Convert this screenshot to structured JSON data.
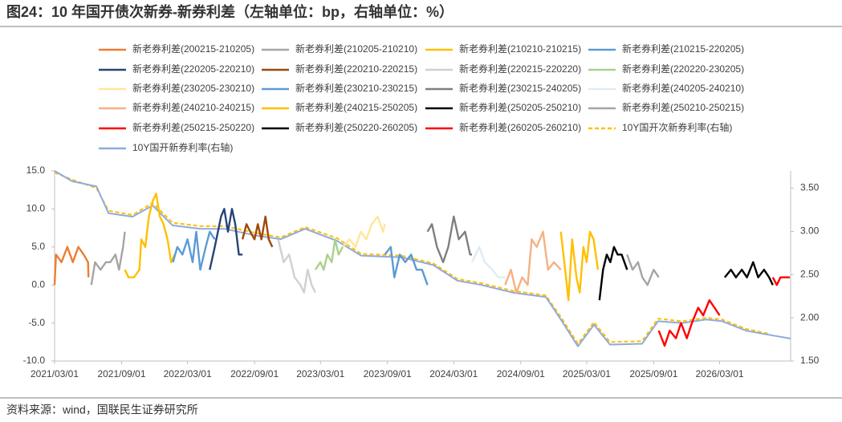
{
  "chart_data": {
    "type": "line",
    "title": "图24：10 年国开债次新券-新券利差（左轴单位：bp，右轴单位：%）",
    "source": "资料来源：wind，国联民生证券研究所",
    "xlim": [
      "2021/03/01",
      "2026/09/12"
    ],
    "xticks": [
      "2021/03/01",
      "2021/09/01",
      "2022/03/01",
      "2022/09/01",
      "2023/03/01",
      "2023/09/01",
      "2024/03/01",
      "2024/09/01",
      "2025/03/01",
      "2025/09/01",
      "2026/03/01"
    ],
    "ylim": [
      -10,
      15
    ],
    "yticks": [
      {
        "value": 15,
        "label": "15.0"
      },
      {
        "value": 10,
        "label": "10.0"
      },
      {
        "value": 5,
        "label": "5.0"
      },
      {
        "value": 0,
        "label": "0.0"
      },
      {
        "value": -5,
        "label": "-5.0"
      },
      {
        "value": -10,
        "label": "-10.0"
      }
    ],
    "y2lim": [
      1.5,
      3.7
    ],
    "y2ticks": [
      {
        "value": 3.5,
        "label": "3.50"
      },
      {
        "value": 3,
        "label": "3.00"
      },
      {
        "value": 2.5,
        "label": "2.50"
      },
      {
        "value": 2,
        "label": "2.00"
      },
      {
        "value": 1.5,
        "label": "1.50"
      }
    ],
    "grid": false,
    "legend": "top",
    "series": [
      {
        "name": "新老券利差(200215-210205)",
        "color": "#ED7D31",
        "x": [
          "2021/03/01",
          "2021/03/05",
          "2021/03/20",
          "2021/04/05",
          "2021/04/20",
          "2021/05/05",
          "2021/05/20",
          "2021/06/01",
          "2021/06/02"
        ],
        "values": [
          0,
          4,
          3,
          5,
          3,
          5,
          4,
          3,
          1
        ]
      },
      {
        "name": "新老券利差(210205-210210)",
        "color": "#A5A5A5",
        "x": [
          "2021/06/10",
          "2021/06/20",
          "2021/07/05",
          "2021/07/20",
          "2021/08/01",
          "2021/08/15",
          "2021/08/25",
          "2021/09/05",
          "2021/09/10"
        ],
        "values": [
          0,
          3,
          2,
          3,
          3,
          4,
          2,
          5,
          7
        ]
      },
      {
        "name": "新老券利差(210210-210215)",
        "color": "#FFC000",
        "x": [
          "2021/09/10",
          "2021/09/20",
          "2021/10/05",
          "2021/10/20",
          "2021/10/25",
          "2021/11/05",
          "2021/11/15",
          "2021/11/25",
          "2021/12/05",
          "2021/12/15",
          "2021/12/25",
          "2022/01/05",
          "2022/01/15",
          "2022/01/25"
        ],
        "values": [
          2,
          1,
          1,
          2,
          6,
          5,
          9,
          11,
          12,
          9,
          8,
          6,
          3,
          4
        ]
      },
      {
        "name": "新老券利差(210215-220205)",
        "color": "#5B9BD5",
        "x": [
          "2022/01/20",
          "2022/02/01",
          "2022/02/15",
          "2022/03/01",
          "2022/03/15",
          "2022/03/25",
          "2022/04/05",
          "2022/04/20",
          "2022/05/01",
          "2022/05/15"
        ],
        "values": [
          3,
          5,
          4,
          6,
          3,
          7,
          2,
          5,
          7,
          6
        ]
      },
      {
        "name": "新老券利差(220205-220210)",
        "color": "#264478",
        "x": [
          "2022/05/01",
          "2022/05/15",
          "2022/06/01",
          "2022/06/10",
          "2022/06/20",
          "2022/07/01",
          "2022/07/10",
          "2022/07/20",
          "2022/07/30"
        ],
        "values": [
          2,
          5,
          9,
          10,
          7,
          10,
          8,
          4,
          4
        ]
      },
      {
        "name": "新老券利差(220210-220215)",
        "color": "#9E480E",
        "x": [
          "2022/07/30",
          "2022/08/10",
          "2022/08/20",
          "2022/09/01",
          "2022/09/10",
          "2022/09/20",
          "2022/10/01",
          "2022/10/10",
          "2022/10/20"
        ],
        "values": [
          6,
          8,
          7,
          6,
          8,
          6,
          9,
          6,
          5
        ]
      },
      {
        "name": "新老券利差(220215-220220)",
        "color": "#D0D0D0",
        "x": [
          "2022/11/05",
          "2022/11/20",
          "2022/12/05",
          "2022/12/20",
          "2023/01/05",
          "2023/01/15",
          "2023/01/25",
          "2023/02/05",
          "2023/02/15"
        ],
        "values": [
          6,
          3,
          4,
          1,
          0,
          -1,
          2,
          0,
          -1
        ]
      },
      {
        "name": "新老券利差(220220-230205)",
        "color": "#A9D18E",
        "x": [
          "2023/02/15",
          "2023/03/01",
          "2023/03/10",
          "2023/03/20",
          "2023/04/01",
          "2023/04/10",
          "2023/04/20",
          "2023/05/01"
        ],
        "values": [
          2,
          3,
          2,
          4,
          3,
          6,
          4,
          5
        ]
      },
      {
        "name": "新老券利差(230205-230210)",
        "color": "#FFE699",
        "x": [
          "2023/05/01",
          "2023/05/20",
          "2023/06/05",
          "2023/06/20",
          "2023/07/05",
          "2023/07/20",
          "2023/08/05",
          "2023/08/20",
          "2023/08/25"
        ],
        "values": [
          5,
          6,
          5,
          7,
          6,
          8,
          9,
          7,
          8
        ]
      },
      {
        "name": "新老券利差(230210-230215)",
        "color": "#5B9BD5",
        "x": [
          "2023/08/25",
          "2023/09/10",
          "2023/09/20",
          "2023/10/05",
          "2023/10/20",
          "2023/11/05",
          "2023/11/20",
          "2023/12/05",
          "2023/12/20"
        ],
        "values": [
          4,
          5,
          1,
          4,
          3,
          4,
          2,
          2,
          0
        ]
      },
      {
        "name": "新老券利差(230215-240205)",
        "color": "#7F7F7F",
        "x": [
          "2023/12/20",
          "2024/01/01",
          "2024/01/15",
          "2024/02/01",
          "2024/02/15",
          "2024/03/01",
          "2024/03/15",
          "2024/04/01",
          "2024/04/15",
          "2024/04/20"
        ],
        "values": [
          7,
          8,
          5,
          3,
          5,
          9,
          6,
          7,
          4,
          4
        ]
      },
      {
        "name": "新老券利差(240205-240210)",
        "color": "#DEEBF7",
        "x": [
          "2024/04/20",
          "2024/05/10",
          "2024/05/25",
          "2024/06/15",
          "2024/07/01",
          "2024/07/20"
        ],
        "values": [
          3,
          5,
          3,
          2,
          1,
          1
        ]
      },
      {
        "name": "新老券利差(240210-240215)",
        "color": "#F4B183",
        "x": [
          "2024/07/20",
          "2024/08/05",
          "2024/08/20",
          "2024/09/05",
          "2024/09/20",
          "2024/10/01",
          "2024/10/15",
          "2024/11/01",
          "2024/11/15",
          "2024/12/01",
          "2024/12/20"
        ],
        "values": [
          0,
          2,
          -1,
          1,
          0,
          6,
          5,
          7,
          2,
          3,
          2
        ]
      },
      {
        "name": "新老券利差(240215-250205)",
        "color": "#FFC000",
        "x": [
          "2024/12/20",
          "2025/01/01",
          "2025/01/10",
          "2025/01/20",
          "2025/02/01",
          "2025/02/10",
          "2025/02/20",
          "2025/03/01",
          "2025/03/10",
          "2025/03/20",
          "2025/04/01"
        ],
        "values": [
          7,
          2,
          -2,
          6,
          1,
          -1,
          5,
          3,
          7,
          6,
          2
        ]
      },
      {
        "name": "新老券利差(250205-250210)",
        "color": "#000000",
        "x": [
          "2025/04/05",
          "2025/04/15",
          "2025/04/25",
          "2025/05/05",
          "2025/05/15",
          "2025/05/25",
          "2025/06/05",
          "2025/06/20"
        ],
        "values": [
          -2,
          2,
          4,
          3,
          5,
          4,
          4,
          2
        ]
      },
      {
        "name": "新老券利差(250210-250215)",
        "color": "#A5A5A5",
        "x": [
          "2025/06/20",
          "2025/07/05",
          "2025/07/20",
          "2025/08/01",
          "2025/08/15",
          "2025/09/01",
          "2025/09/15"
        ],
        "values": [
          4,
          2,
          3,
          1,
          0,
          2,
          1
        ]
      },
      {
        "name": "新老券利差(250215-250220)",
        "color": "#FF0000",
        "x": [
          "2025/09/15",
          "2025/10/01",
          "2025/10/15",
          "2025/11/01",
          "2025/11/15",
          "2025/12/01",
          "2025/12/15",
          "2026/01/01",
          "2026/01/15",
          "2026/02/01",
          "2026/02/15",
          "2026/03/01"
        ],
        "values": [
          -6,
          -8,
          -6,
          -7,
          -5,
          -7,
          -5,
          -3,
          -4,
          -2,
          -3,
          -4
        ]
      },
      {
        "name": "新老券利差(250220-260205)",
        "color": "#000000",
        "x": [
          "2026/03/15",
          "2026/04/01",
          "2026/04/15",
          "2026/05/01",
          "2026/05/15",
          "2026/06/01",
          "2026/06/15",
          "2026/07/01",
          "2026/07/15",
          "2026/07/25"
        ],
        "values": [
          1,
          2,
          1,
          2,
          1,
          3,
          1,
          2,
          1,
          0
        ]
      },
      {
        "name": "新老券利差(260205-260210)",
        "color": "#FF0000",
        "x": [
          "2026/07/25",
          "2026/08/05",
          "2026/08/15",
          "2026/08/25",
          "2026/09/10"
        ],
        "values": [
          1,
          0,
          1,
          1,
          1
        ]
      },
      {
        "name": "10Y国开次新券利率(右轴)",
        "color": "#FFC000",
        "axis": "y2",
        "line_style": "dashed",
        "x": [
          "2021/03/01",
          "2021/04/18",
          "2021/06/24",
          "2021/07/27",
          "2021/10/01",
          "2021/11/25",
          "2022/01/19",
          "2022/04/06",
          "2022/06/11",
          "2022/09/07",
          "2022/11/12",
          "2023/01/18",
          "2023/04/16",
          "2023/06/21",
          "2023/10/09",
          "2024/01/05",
          "2024/03/11",
          "2024/05/16",
          "2024/08/12",
          "2024/11/09",
          "2024/12/23",
          "2025/02/05",
          "2025/03/21",
          "2025/05/04",
          "2025/07/31",
          "2025/09/13",
          "2025/11/18",
          "2026/01/23",
          "2026/03/08",
          "2026/05/14",
          "2026/07/19"
        ],
        "values": [
          3.68,
          3.6,
          3.5,
          3.24,
          3.19,
          3.33,
          3.1,
          3.06,
          3.06,
          2.98,
          2.93,
          3.05,
          2.92,
          2.74,
          2.72,
          2.63,
          2.45,
          2.4,
          2.31,
          2.26,
          1.99,
          1.7,
          1.95,
          1.72,
          1.73,
          1.99,
          1.96,
          2.0,
          1.98,
          1.87,
          1.81
        ]
      },
      {
        "name": "10Y国开新券利率(右轴)",
        "color": "#8FAADC",
        "axis": "y2",
        "x": [
          "2021/03/01",
          "2021/04/18",
          "2021/06/24",
          "2021/07/27",
          "2021/10/01",
          "2021/11/25",
          "2022/01/19",
          "2022/04/06",
          "2022/06/11",
          "2022/09/07",
          "2022/11/12",
          "2023/01/18",
          "2023/04/16",
          "2023/06/21",
          "2023/10/09",
          "2024/01/05",
          "2024/03/11",
          "2024/05/16",
          "2024/08/12",
          "2024/11/09",
          "2024/12/23",
          "2025/02/05",
          "2025/03/21",
          "2025/05/04",
          "2025/07/31",
          "2025/09/13",
          "2025/11/18",
          "2026/01/23",
          "2026/03/08",
          "2026/05/14",
          "2026/07/19",
          "2026/09/12"
        ],
        "values": [
          3.7,
          3.58,
          3.52,
          3.21,
          3.17,
          3.3,
          3.07,
          3.03,
          3.03,
          2.95,
          2.91,
          3.03,
          2.89,
          2.72,
          2.7,
          2.61,
          2.43,
          2.38,
          2.29,
          2.24,
          1.96,
          1.67,
          1.92,
          1.69,
          1.7,
          1.96,
          1.94,
          1.98,
          1.96,
          1.85,
          1.8,
          1.76
        ]
      }
    ]
  }
}
